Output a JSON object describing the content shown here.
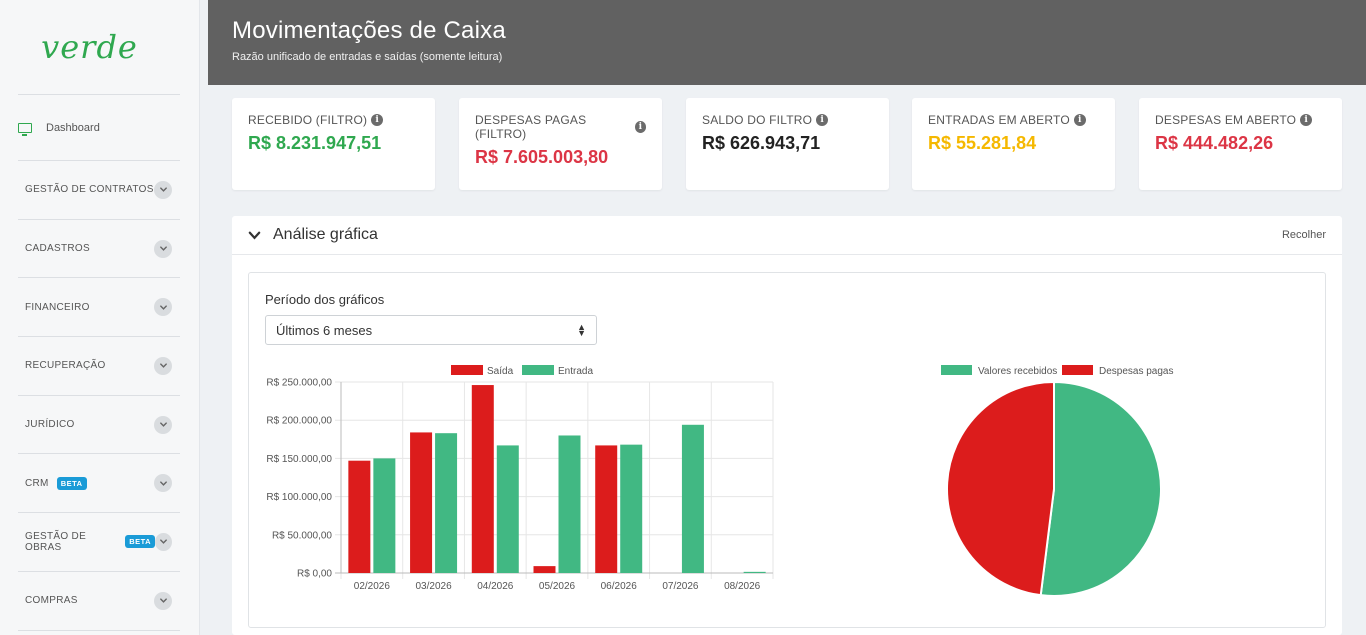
{
  "sidebar": {
    "logo": "verde",
    "dashboard": "Dashboard",
    "items": [
      {
        "label": "GESTÃO DE CONTRATOS",
        "badge": ""
      },
      {
        "label": "CADASTROS",
        "badge": ""
      },
      {
        "label": "FINANCEIRO",
        "badge": ""
      },
      {
        "label": "RECUPERAÇÃO",
        "badge": ""
      },
      {
        "label": "JURÍDICO",
        "badge": ""
      },
      {
        "label": "CRM",
        "badge": "BETA"
      },
      {
        "label": "GESTÃO DE OBRAS",
        "badge": "BETA"
      },
      {
        "label": "COMPRAS",
        "badge": ""
      }
    ]
  },
  "header": {
    "title": "Movimentações de Caixa",
    "subtitle": "Razão unificado de entradas e saídas (somente leitura)"
  },
  "cards": [
    {
      "title": "RECEBIDO (FILTRO)",
      "value": "R$ 8.231.947,51",
      "color": "#2fa84f"
    },
    {
      "title": "DESPESAS PAGAS (FILTRO)",
      "value": "R$ 7.605.003,80",
      "color": "#dc3545"
    },
    {
      "title": "SALDO DO FILTRO",
      "value": "R$ 626.943,71",
      "color": "#222222"
    },
    {
      "title": "ENTRADAS EM ABERTO",
      "value": "R$ 55.281,84",
      "color": "#f5b800"
    },
    {
      "title": "DESPESAS EM ABERTO",
      "value": "R$ 444.482,26",
      "color": "#dc3545"
    }
  ],
  "panel": {
    "title": "Análise gráfica",
    "collapse_label": "Recolher",
    "period_label": "Período dos gráficos",
    "period_value": "Últimos 6 meses"
  },
  "colors": {
    "saida": "#dc1c1c",
    "entrada": "#41b883"
  },
  "chart_data": [
    {
      "type": "bar",
      "categories": [
        "02/2026",
        "03/2026",
        "04/2026",
        "05/2026",
        "06/2026",
        "07/2026",
        "08/2026"
      ],
      "series": [
        {
          "name": "Saída",
          "values": [
            147000,
            184000,
            246000,
            9000,
            167000,
            0,
            0
          ]
        },
        {
          "name": "Entrada",
          "values": [
            150000,
            183000,
            167000,
            180000,
            168000,
            194000,
            1500
          ]
        }
      ],
      "yticks": [
        "R$ 250.000,00",
        "R$ 200.000,00",
        "R$ 150.000,00",
        "R$ 100.000,00",
        "R$ 50.000,00",
        "R$ 0,00"
      ],
      "ylim": [
        0,
        250000
      ],
      "grid": true,
      "legend": "top"
    },
    {
      "type": "pie",
      "labels": [
        "Valores recebidos",
        "Despesas pagas"
      ],
      "values": [
        8231947.51,
        7605003.8
      ],
      "legend": "top"
    }
  ]
}
